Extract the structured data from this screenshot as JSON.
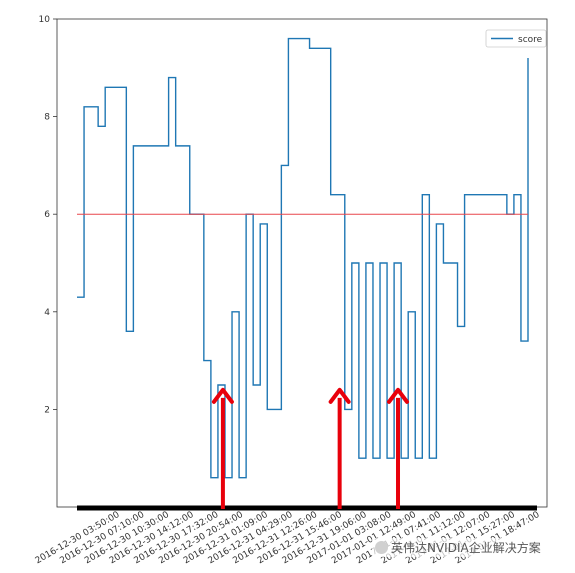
{
  "chart_data": {
    "type": "line",
    "title": "",
    "xlabel": "",
    "ylabel": "",
    "ylim": [
      0,
      10
    ],
    "yticks": [
      2,
      4,
      6,
      8,
      10
    ],
    "grid": false,
    "legend": "top-right",
    "x_tick_labels": [
      "2016-12-30 03:50:00",
      "2016-12-30 07:10:00",
      "2016-12-30 10:30:00",
      "2016-12-30 14:12:00",
      "2016-12-30 17:32:00",
      "2016-12-30 20:54:00",
      "2016-12-31 01:09:00",
      "2016-12-31 04:29:00",
      "2016-12-31 12:26:00",
      "2016-12-31 15:46:00",
      "2016-12-31 19:06:00",
      "2017-01-01 03:08:00",
      "2017-01-01 12:49:00",
      "2017-01-01 07:41:00",
      "2017-01-01 11:12:00",
      "2017-01-01 12:07:00",
      "2017-01-01 15:27:00",
      "2017-01-01 18:47:00"
    ],
    "series": [
      {
        "name": "score",
        "color": "#1f77b4",
        "values": [
          4.3,
          8.2,
          8.2,
          7.8,
          8.6,
          8.6,
          8.6,
          3.6,
          7.4,
          7.4,
          7.4,
          7.4,
          7.4,
          8.8,
          7.4,
          7.4,
          6.0,
          6.0,
          3.0,
          0.6,
          2.5,
          0.6,
          4.0,
          0.6,
          6.0,
          2.5,
          5.8,
          2.0,
          2.0,
          7.0,
          9.6,
          9.6,
          9.6,
          9.4,
          9.4,
          9.4,
          6.4,
          6.4,
          2.0,
          5.0,
          1.0,
          5.0,
          1.0,
          5.0,
          1.0,
          5.0,
          1.0,
          4.0,
          1.0,
          6.4,
          1.0,
          5.8,
          5.0,
          5.0,
          3.7,
          6.4,
          6.4,
          6.4,
          6.4,
          6.4,
          6.4,
          6.0,
          6.4,
          3.4,
          9.2
        ]
      },
      {
        "name": "",
        "color": "#e8474c",
        "values": [
          6.0,
          6.0
        ]
      }
    ],
    "annotations": [
      {
        "type": "arrow",
        "color": "#e8000b",
        "x_index": 5
      },
      {
        "type": "arrow",
        "color": "#e8000b",
        "x_index": 9
      },
      {
        "type": "arrow",
        "color": "#e8000b",
        "x_index": 11
      }
    ]
  },
  "watermark": "英伟达NVIDIA企业解决方案"
}
